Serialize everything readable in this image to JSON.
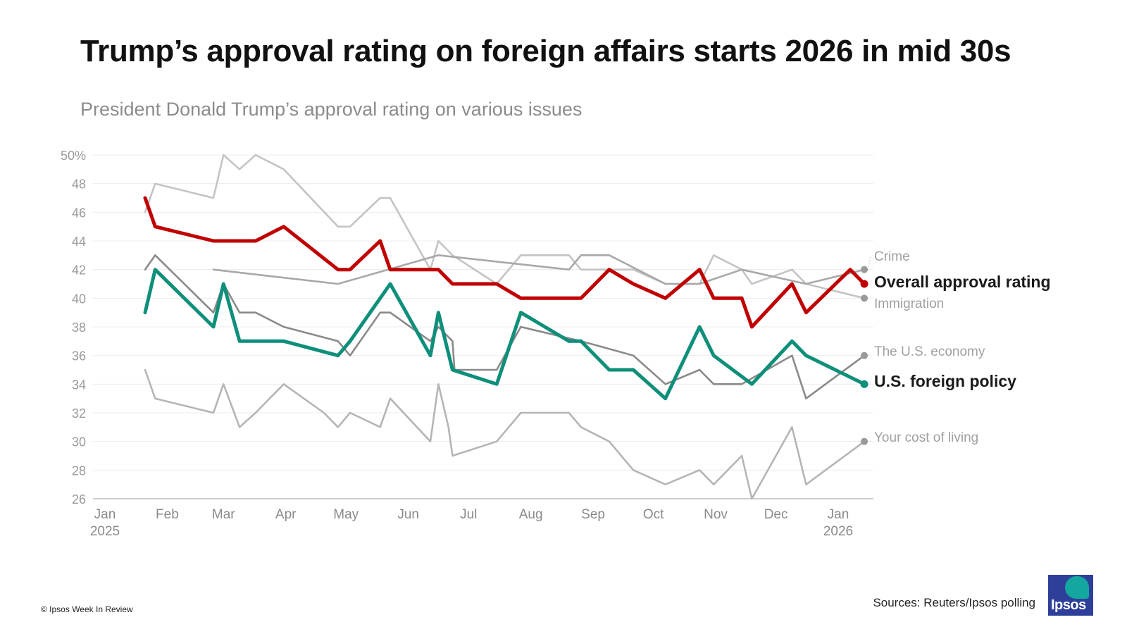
{
  "header": {
    "title": "Trump’s approval rating on foreign affairs starts 2026 in mid 30s",
    "subtitle": "President Donald Trump’s approval rating on various issues"
  },
  "footer": {
    "copyright": "© Ipsos Week In Review",
    "source": "Sources: Reuters/Ipsos polling",
    "logo_text": "Ipsos"
  },
  "chart_data": {
    "type": "line",
    "title": "Trump’s approval rating on foreign affairs starts 2026 in mid 30s",
    "subtitle": "President Donald Trump’s approval rating on various issues",
    "xlabel": "",
    "ylabel": "",
    "ylim": [
      26,
      50
    ],
    "yticks": [
      26,
      28,
      30,
      32,
      34,
      36,
      38,
      40,
      42,
      44,
      46,
      48,
      50
    ],
    "ytick_labels": [
      "26",
      "28",
      "30",
      "32",
      "34",
      "36",
      "38",
      "40",
      "42",
      "44",
      "46",
      "48",
      "50%"
    ],
    "xlim": [
      "2025-01-01",
      "2026-01-20"
    ],
    "xticks": [
      {
        "date": "2025-01-01",
        "label": "Jan",
        "sublabel": "2025"
      },
      {
        "date": "2025-02-01",
        "label": "Feb"
      },
      {
        "date": "2025-03-01",
        "label": "Mar"
      },
      {
        "date": "2025-04-01",
        "label": "Apr"
      },
      {
        "date": "2025-05-01",
        "label": "May"
      },
      {
        "date": "2025-06-01",
        "label": "Jun"
      },
      {
        "date": "2025-07-01",
        "label": "Jul"
      },
      {
        "date": "2025-08-01",
        "label": "Aug"
      },
      {
        "date": "2025-09-01",
        "label": "Sep"
      },
      {
        "date": "2025-10-01",
        "label": "Oct"
      },
      {
        "date": "2025-11-01",
        "label": "Nov"
      },
      {
        "date": "2025-12-01",
        "label": "Dec"
      },
      {
        "date": "2026-01-01",
        "label": "Jan",
        "sublabel": "2026"
      }
    ],
    "grid": true,
    "legend": "right, direct labels at line ends",
    "series": [
      {
        "name": "Your cost of living",
        "color": "#b5b5b5",
        "emphasis": false,
        "points": [
          [
            "2025-01-21",
            35
          ],
          [
            "2025-01-26",
            33
          ],
          [
            "2025-02-24",
            32
          ],
          [
            "2025-03-01",
            34
          ],
          [
            "2025-03-09",
            31
          ],
          [
            "2025-03-17",
            32
          ],
          [
            "2025-03-31",
            34
          ],
          [
            "2025-04-20",
            32
          ],
          [
            "2025-04-27",
            31
          ],
          [
            "2025-05-03",
            32
          ],
          [
            "2025-05-18",
            31
          ],
          [
            "2025-05-23",
            33
          ],
          [
            "2025-06-12",
            30
          ],
          [
            "2025-06-16",
            34
          ],
          [
            "2025-06-21",
            31
          ],
          [
            "2025-06-23",
            29
          ],
          [
            "2025-07-15",
            30
          ],
          [
            "2025-07-27",
            32
          ],
          [
            "2025-08-20",
            32
          ],
          [
            "2025-08-26",
            31
          ],
          [
            "2025-09-09",
            30
          ],
          [
            "2025-09-21",
            28
          ],
          [
            "2025-10-07",
            27
          ],
          [
            "2025-10-24",
            28
          ],
          [
            "2025-10-31",
            27
          ],
          [
            "2025-11-14",
            29
          ],
          [
            "2025-11-19",
            26
          ],
          [
            "2025-12-09",
            31
          ],
          [
            "2025-12-16",
            27
          ],
          [
            "2026-01-14",
            30
          ]
        ]
      },
      {
        "name": "Immigration",
        "color": "#c4c4c4",
        "emphasis": false,
        "points": [
          [
            "2025-01-21",
            46
          ],
          [
            "2025-01-26",
            48
          ],
          [
            "2025-02-24",
            47
          ],
          [
            "2025-03-01",
            50
          ],
          [
            "2025-03-09",
            49
          ],
          [
            "2025-03-17",
            50
          ],
          [
            "2025-03-31",
            49
          ],
          [
            "2025-04-27",
            45
          ],
          [
            "2025-05-03",
            45
          ],
          [
            "2025-05-18",
            47
          ],
          [
            "2025-05-23",
            47
          ],
          [
            "2025-06-12",
            42
          ],
          [
            "2025-06-16",
            44
          ],
          [
            "2025-06-23",
            43
          ],
          [
            "2025-07-15",
            41
          ],
          [
            "2025-07-27",
            43
          ],
          [
            "2025-08-20",
            43
          ],
          [
            "2025-08-26",
            42
          ],
          [
            "2025-09-21",
            42
          ],
          [
            "2025-10-07",
            41
          ],
          [
            "2025-10-24",
            41
          ],
          [
            "2025-10-31",
            43
          ],
          [
            "2025-11-14",
            42
          ],
          [
            "2025-11-19",
            41
          ],
          [
            "2025-12-09",
            42
          ],
          [
            "2025-12-16",
            41
          ],
          [
            "2026-01-14",
            40
          ]
        ]
      },
      {
        "name": "Crime",
        "color": "#a8a8a8",
        "emphasis": false,
        "points": [
          [
            "2025-02-24",
            42
          ],
          [
            "2025-04-27",
            41
          ],
          [
            "2025-06-16",
            43
          ],
          [
            "2025-08-20",
            42
          ],
          [
            "2025-08-26",
            43
          ],
          [
            "2025-09-09",
            43
          ],
          [
            "2025-10-07",
            41
          ],
          [
            "2025-10-24",
            41
          ],
          [
            "2025-11-14",
            42
          ],
          [
            "2025-12-16",
            41
          ],
          [
            "2026-01-14",
            42
          ]
        ]
      },
      {
        "name": "The U.S. economy",
        "color": "#8a8a8a",
        "emphasis": false,
        "points": [
          [
            "2025-01-21",
            42
          ],
          [
            "2025-01-26",
            43
          ],
          [
            "2025-02-24",
            39
          ],
          [
            "2025-03-01",
            41
          ],
          [
            "2025-03-09",
            39
          ],
          [
            "2025-03-17",
            39
          ],
          [
            "2025-03-31",
            38
          ],
          [
            "2025-04-27",
            37
          ],
          [
            "2025-05-03",
            36
          ],
          [
            "2025-05-18",
            39
          ],
          [
            "2025-05-23",
            39
          ],
          [
            "2025-06-12",
            37
          ],
          [
            "2025-06-16",
            38
          ],
          [
            "2025-06-23",
            37
          ],
          [
            "2025-06-24",
            35
          ],
          [
            "2025-07-15",
            35
          ],
          [
            "2025-07-27",
            38
          ],
          [
            "2025-08-26",
            37
          ],
          [
            "2025-09-21",
            36
          ],
          [
            "2025-10-07",
            34
          ],
          [
            "2025-10-24",
            35
          ],
          [
            "2025-10-31",
            34
          ],
          [
            "2025-11-14",
            34
          ],
          [
            "2025-12-09",
            36
          ],
          [
            "2025-12-16",
            33
          ],
          [
            "2026-01-14",
            36
          ]
        ]
      },
      {
        "name": "U.S. foreign policy",
        "color": "#0f8f7a",
        "emphasis": true,
        "points": [
          [
            "2025-01-21",
            39
          ],
          [
            "2025-01-26",
            42
          ],
          [
            "2025-02-24",
            38
          ],
          [
            "2025-03-01",
            41
          ],
          [
            "2025-03-09",
            37
          ],
          [
            "2025-03-31",
            37
          ],
          [
            "2025-04-27",
            36
          ],
          [
            "2025-05-03",
            37
          ],
          [
            "2025-05-23",
            41
          ],
          [
            "2025-06-12",
            36
          ],
          [
            "2025-06-16",
            39
          ],
          [
            "2025-06-23",
            35
          ],
          [
            "2025-07-15",
            34
          ],
          [
            "2025-07-27",
            39
          ],
          [
            "2025-08-20",
            37
          ],
          [
            "2025-08-26",
            37
          ],
          [
            "2025-09-09",
            35
          ],
          [
            "2025-09-21",
            35
          ],
          [
            "2025-10-07",
            33
          ],
          [
            "2025-10-24",
            38
          ],
          [
            "2025-10-31",
            36
          ],
          [
            "2025-11-19",
            34
          ],
          [
            "2025-12-09",
            37
          ],
          [
            "2025-12-16",
            36
          ],
          [
            "2026-01-14",
            34
          ]
        ]
      },
      {
        "name": "Overall approval rating",
        "color": "#c00000",
        "emphasis": true,
        "points": [
          [
            "2025-01-21",
            47
          ],
          [
            "2025-01-26",
            45
          ],
          [
            "2025-02-24",
            44
          ],
          [
            "2025-03-17",
            44
          ],
          [
            "2025-03-31",
            45
          ],
          [
            "2025-04-27",
            42
          ],
          [
            "2025-05-03",
            42
          ],
          [
            "2025-05-18",
            44
          ],
          [
            "2025-05-23",
            42
          ],
          [
            "2025-06-16",
            42
          ],
          [
            "2025-06-23",
            41
          ],
          [
            "2025-07-15",
            41
          ],
          [
            "2025-07-27",
            40
          ],
          [
            "2025-08-26",
            40
          ],
          [
            "2025-09-09",
            42
          ],
          [
            "2025-09-21",
            41
          ],
          [
            "2025-10-07",
            40
          ],
          [
            "2025-10-24",
            42
          ],
          [
            "2025-10-31",
            40
          ],
          [
            "2025-11-14",
            40
          ],
          [
            "2025-11-19",
            38
          ],
          [
            "2025-12-09",
            41
          ],
          [
            "2025-12-16",
            39
          ],
          [
            "2026-01-07",
            42
          ],
          [
            "2026-01-14",
            41
          ]
        ]
      }
    ]
  }
}
